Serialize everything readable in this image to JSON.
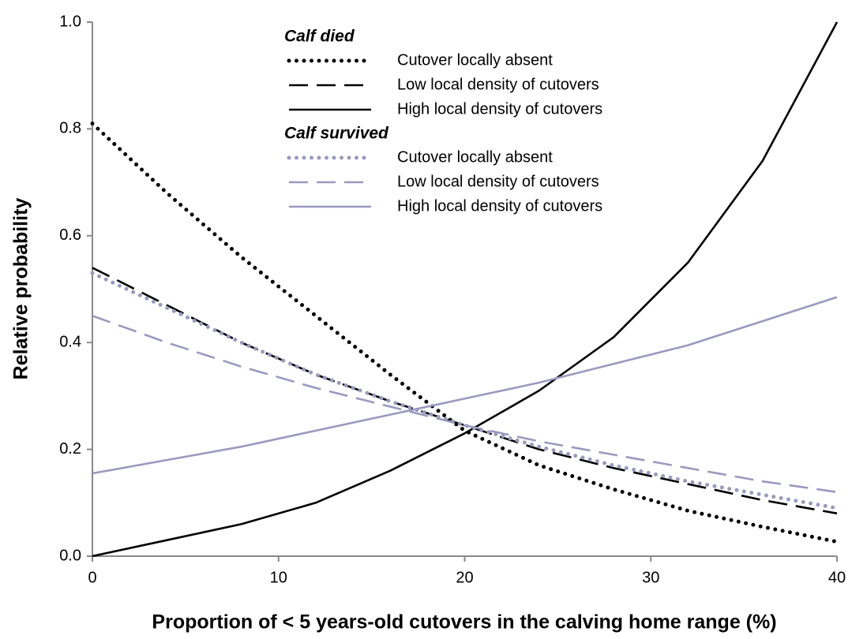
{
  "chart_data": {
    "type": "line",
    "x_label": "Proportion of < 5 years-old cutovers in the calving home range (%)",
    "y_label": "Relative probability",
    "x": [
      0,
      4,
      8,
      12,
      16,
      20,
      24,
      28,
      32,
      36,
      40
    ],
    "xlim": [
      0,
      40
    ],
    "xticks": [
      0,
      10,
      20,
      30,
      40
    ],
    "ylim": [
      0,
      1
    ],
    "yticks": [
      {
        "value": 0,
        "label": "0.0"
      },
      0.2,
      0.4,
      0.6,
      0.8,
      {
        "value": 1,
        "label": "1.0"
      }
    ],
    "grid": false,
    "series_groups": [
      {
        "title": "Calf died",
        "series": [
          {
            "name": "Cutover locally absent",
            "color": "#000000",
            "dash": "dotted",
            "values": [
              0.81,
              0.68,
              0.56,
              0.45,
              0.34,
              0.235,
              0.17,
              0.125,
              0.085,
              0.055,
              0.027
            ]
          },
          {
            "name": "Low local density of cutovers",
            "color": "#000000",
            "dash": "dashed",
            "values": [
              0.54,
              0.47,
              0.4,
              0.34,
              0.29,
              0.245,
              0.2,
              0.165,
              0.135,
              0.105,
              0.08
            ]
          },
          {
            "name": "High local density of cutovers",
            "color": "#000000",
            "dash": "solid",
            "values": [
              0.0,
              0.03,
              0.06,
              0.1,
              0.16,
              0.23,
              0.31,
              0.41,
              0.55,
              0.74,
              1.0
            ]
          }
        ]
      },
      {
        "title": "Calf survived",
        "series": [
          {
            "name": "Cutover locally absent",
            "color": "#9b99bf",
            "dash": "dotted",
            "values": [
              0.53,
              0.465,
              0.4,
              0.34,
              0.29,
              0.245,
              0.205,
              0.17,
              0.14,
              0.115,
              0.09
            ]
          },
          {
            "name": "Low local density of cutovers",
            "color": "#9b99bf",
            "dash": "dashed",
            "values": [
              0.45,
              0.4,
              0.355,
              0.315,
              0.28,
              0.245,
              0.215,
              0.19,
              0.165,
              0.14,
              0.12
            ]
          },
          {
            "name": "High local density of cutovers",
            "color": "#9b99bf",
            "dash": "solid",
            "values": [
              0.155,
              0.18,
              0.205,
              0.235,
              0.265,
              0.295,
              0.325,
              0.36,
              0.395,
              0.44,
              0.485
            ]
          }
        ]
      }
    ]
  }
}
